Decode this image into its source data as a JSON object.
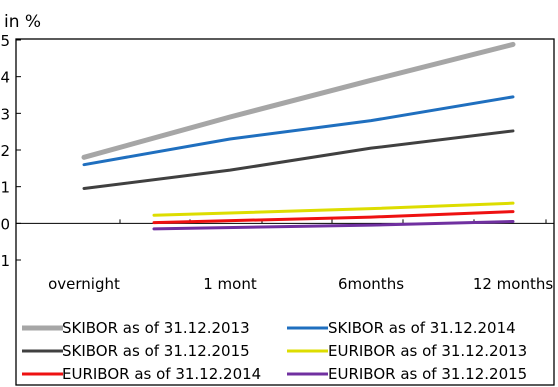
{
  "chart_data": {
    "type": "line",
    "ylabel": "in %",
    "categories": [
      "overnight",
      "1 mont",
      "6months",
      "12 months"
    ],
    "ylim": [
      -1,
      5
    ],
    "yticks": [
      -1,
      0,
      1,
      2,
      3,
      4,
      5
    ],
    "grid": false,
    "legend_position": "bottom",
    "series": [
      {
        "name": "SKIBOR as of 31.12.2013",
        "color": "#a6a6a6",
        "values": [
          1.8,
          2.9,
          3.9,
          4.88
        ]
      },
      {
        "name": "SKIBOR as of 31.12.2014",
        "color": "#1f6fbf",
        "values": [
          1.6,
          2.3,
          2.8,
          3.45
        ]
      },
      {
        "name": "SKIBOR as of 31.12.2015",
        "color": "#404040",
        "values": [
          0.95,
          1.45,
          2.05,
          2.52
        ]
      },
      {
        "name": "EURIBOR as of 31.12.2013",
        "color": "#dddd00",
        "values": [
          null,
          0.22,
          0.4,
          0.55
        ]
      },
      {
        "name": "EURIBOR as of 31.12.2014",
        "color": "#ee1111",
        "values": [
          null,
          0.02,
          0.17,
          0.32
        ]
      },
      {
        "name": "EURIBOR as of 31.12.2015",
        "color": "#7030a0",
        "values": [
          null,
          -0.15,
          -0.05,
          0.05
        ]
      }
    ]
  }
}
